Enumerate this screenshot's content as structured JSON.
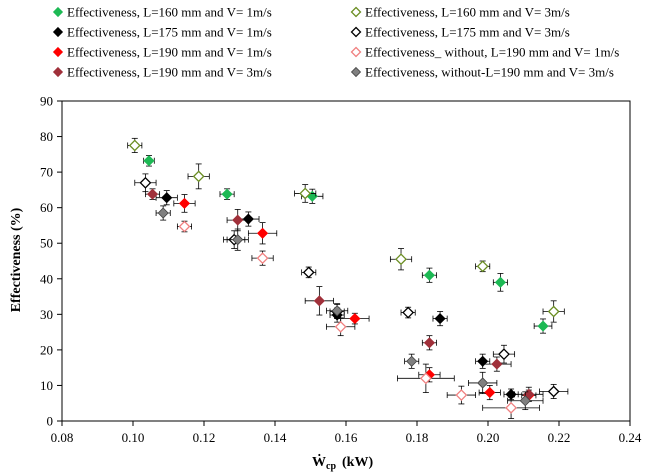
{
  "chart_data": {
    "type": "scatter",
    "title": "",
    "xlabel_main": "Ẇ",
    "xlabel_sub": "cp",
    "xlabel_unit": "(kW)",
    "ylabel": "Effectiveness   (%)",
    "xlim": [
      0.08,
      0.24
    ],
    "ylim": [
      0,
      90
    ],
    "xticks": [
      "0.08",
      "0.10",
      "0.12",
      "0.14",
      "0.16",
      "0.18",
      "0.20",
      "0.22",
      "0.24"
    ],
    "yticks": [
      "0",
      "10",
      "20",
      "30",
      "40",
      "50",
      "60",
      "70",
      "80",
      "90"
    ],
    "xtick_values": [
      0.08,
      0.1,
      0.12,
      0.14,
      0.16,
      0.18,
      0.2,
      0.22,
      0.24
    ],
    "ytick_values": [
      0,
      10,
      20,
      30,
      40,
      50,
      60,
      70,
      80,
      90
    ],
    "grid": false,
    "legend_position": "top",
    "series": [
      {
        "name": "Effectiveness, L=160 mm and V= 1m/s",
        "color": "#1db954",
        "fill": "filled",
        "x": [
          0.1045,
          0.1265,
          0.1505,
          0.1835,
          0.2035,
          0.2155
        ],
        "y": [
          73.2,
          63.8,
          63.2,
          41.0,
          39.0,
          26.7
        ],
        "ex": [
          0.0015,
          0.002,
          0.003,
          0.002,
          0.002,
          0.0025
        ],
        "ey": [
          1.5,
          1.5,
          2,
          2,
          2.5,
          2
        ]
      },
      {
        "name": "Effectiveness, L=160 mm and V= 3m/s",
        "color": "#6b8e23",
        "fill": "hollow",
        "x": [
          0.1005,
          0.1185,
          0.1485,
          0.1755,
          0.1985,
          0.2185
        ],
        "y": [
          77.5,
          68.8,
          64.0,
          45.5,
          43.5,
          30.8
        ],
        "ex": [
          0.002,
          0.003,
          0.003,
          0.003,
          0.002,
          0.003
        ],
        "ey": [
          2,
          3.5,
          2.5,
          3,
          1.5,
          3
        ]
      },
      {
        "name": "Effectiveness, L=175 mm and V= 1m/s",
        "color": "#000000",
        "fill": "filled",
        "x": [
          0.1095,
          0.1325,
          0.1575,
          0.1865,
          0.1985,
          0.2065
        ],
        "y": [
          62.8,
          56.8,
          29.8,
          28.8,
          16.8,
          7.5
        ],
        "ex": [
          0.003,
          0.003,
          0.002,
          0.002,
          0.002,
          0.002
        ],
        "ey": [
          2,
          2,
          2,
          2,
          2,
          1.5
        ]
      },
      {
        "name": "Effectiveness, L=175 mm and V= 3m/s",
        "color": "#000000",
        "fill": "hollow",
        "x": [
          0.1035,
          0.1285,
          0.1495,
          0.1575,
          0.1775,
          0.2045,
          0.2185
        ],
        "y": [
          67.0,
          51.0,
          41.8,
          30.8,
          30.5,
          18.8,
          8.3
        ],
        "ex": [
          0.003,
          0.003,
          0.002,
          0.002,
          0.002,
          0.003,
          0.004
        ],
        "ey": [
          2.5,
          2.5,
          1.5,
          2,
          1.5,
          2.5,
          2
        ]
      },
      {
        "name": "Effectiveness, L=190 mm and V= 1m/s",
        "color": "#ff0000",
        "fill": "filled",
        "x": [
          0.1145,
          0.1365,
          0.1625,
          0.1835,
          0.2005,
          0.2115
        ],
        "y": [
          61.2,
          52.8,
          28.8,
          13.0,
          8.0,
          7.2
        ],
        "ex": [
          0.003,
          0.004,
          0.004,
          0.003,
          0.003,
          0.002
        ],
        "ey": [
          2.5,
          3,
          1.5,
          2,
          2,
          1.5
        ]
      },
      {
        "name": "Effectiveness_ without, L=190 mm and V= 1m/s",
        "color": "#f08080",
        "fill": "hollow",
        "x": [
          0.1145,
          0.1365,
          0.1585,
          0.1825,
          0.1925,
          0.2065
        ],
        "y": [
          54.7,
          45.8,
          26.5,
          12.0,
          7.3,
          3.7
        ],
        "ex": [
          0.002,
          0.003,
          0.004,
          0.008,
          0.004,
          0.008
        ],
        "ey": [
          1.5,
          2,
          2.5,
          4,
          2.5,
          3
        ]
      },
      {
        "name": "Effectiveness, L=190 mm and V= 3m/s",
        "color": "#a0303a",
        "fill": "filled",
        "x": [
          0.1055,
          0.1295,
          0.1525,
          0.1835,
          0.2025,
          0.2115
        ],
        "y": [
          63.8,
          56.5,
          33.8,
          22.0,
          16.0,
          7.5
        ],
        "ex": [
          0.002,
          0.003,
          0.004,
          0.002,
          0.004,
          0.004
        ],
        "ey": [
          1.5,
          3,
          4,
          2,
          2,
          2
        ]
      },
      {
        "name": "Effectiveness, without-L=190 mm and V= 3m/s",
        "color": "#808080",
        "fill": "filled",
        "x": [
          0.1085,
          0.1295,
          0.1575,
          0.1785,
          0.1985,
          0.2105
        ],
        "y": [
          58.5,
          51.0,
          31.0,
          16.8,
          10.7,
          5.7
        ],
        "ex": [
          0.002,
          0.003,
          0.003,
          0.002,
          0.004,
          0.005
        ],
        "ey": [
          2,
          3,
          2,
          2,
          3,
          2.5
        ]
      }
    ]
  }
}
